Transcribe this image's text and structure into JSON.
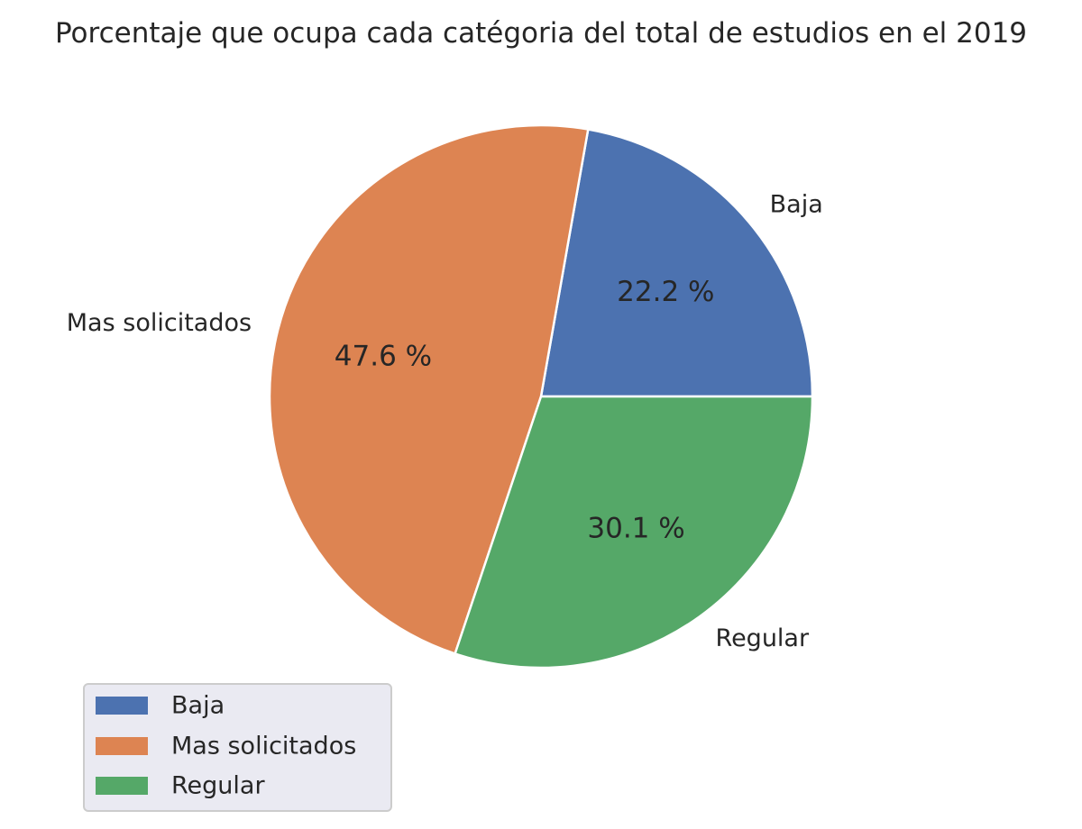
{
  "chart_data": {
    "type": "pie",
    "title": "Porcentaje que ocupa cada catégoria del total de estudios en el 2019",
    "categories": [
      "Baja",
      "Mas solicitados",
      "Regular"
    ],
    "values": [
      22.2,
      47.6,
      30.1
    ],
    "value_labels": [
      "22.2 %",
      "47.6 %",
      "30.1 %"
    ],
    "colors": [
      "#4c72b0",
      "#dd8452",
      "#55a868"
    ],
    "start_angle_deg": 0,
    "direction": "counterclockwise",
    "legend": {
      "placement": "lower-left",
      "entries": [
        "Baja",
        "Mas solicitados",
        "Regular"
      ],
      "background": "#eaeaf2"
    }
  }
}
